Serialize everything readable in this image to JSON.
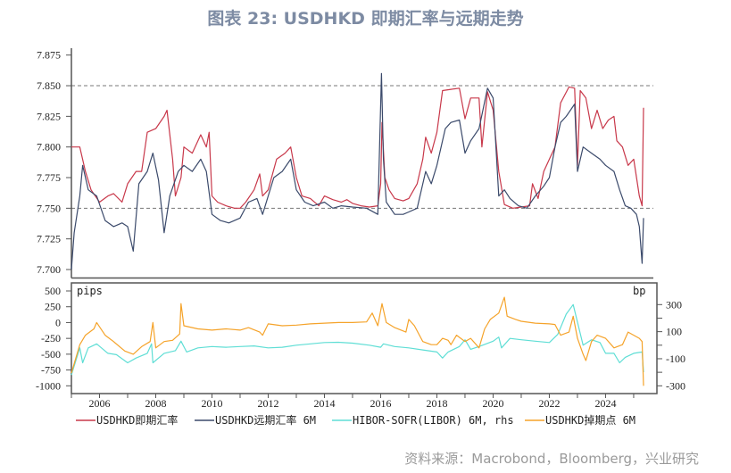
{
  "title": "图表 23: USDHKD 即期汇率与远期走势",
  "source": "资料来源：Macrobond，Bloomberg，兴业研究",
  "chart_data": [
    {
      "type": "line",
      "panel": "top",
      "ylim": [
        7.7,
        7.875
      ],
      "yticks": [
        "7.875",
        "7.850",
        "7.825",
        "7.800",
        "7.775",
        "7.750",
        "7.725",
        "7.700"
      ],
      "reference_lines": [
        7.85,
        7.75
      ],
      "xlim": [
        2005,
        2025.7
      ],
      "series": [
        {
          "name": "USDHKD即期汇率",
          "color": "#c8384a",
          "x": [
            2005.0,
            2005.3,
            2005.5,
            2005.7,
            2006.0,
            2006.3,
            2006.5,
            2006.8,
            2007.0,
            2007.3,
            2007.5,
            2007.7,
            2008.0,
            2008.3,
            2008.4,
            2008.6,
            2008.7,
            2008.9,
            2009.0,
            2009.3,
            2009.6,
            2009.8,
            2009.9,
            2010.0,
            2010.2,
            2010.5,
            2010.8,
            2011.0,
            2011.2,
            2011.5,
            2011.7,
            2011.8,
            2012.0,
            2012.3,
            2012.6,
            2012.8,
            2013.0,
            2013.2,
            2013.5,
            2013.8,
            2014.0,
            2014.3,
            2014.6,
            2014.8,
            2015.0,
            2015.3,
            2015.6,
            2015.9,
            2016.0,
            2016.05,
            2016.15,
            2016.3,
            2016.5,
            2016.8,
            2017.0,
            2017.3,
            2017.5,
            2017.6,
            2017.8,
            2018.0,
            2018.2,
            2018.5,
            2018.8,
            2019.0,
            2019.2,
            2019.5,
            2019.6,
            2019.8,
            2020.0,
            2020.2,
            2020.4,
            2020.7,
            2021.0,
            2021.3,
            2021.4,
            2021.6,
            2021.8,
            2022.0,
            2022.2,
            2022.4,
            2022.7,
            2022.9,
            2023.0,
            2023.1,
            2023.3,
            2023.5,
            2023.7,
            2023.9,
            2024.1,
            2024.3,
            2024.4,
            2024.6,
            2024.8,
            2025.0,
            2025.2,
            2025.3,
            2025.35
          ],
          "values": [
            7.8,
            7.8,
            7.78,
            7.765,
            7.755,
            7.76,
            7.762,
            7.755,
            7.77,
            7.78,
            7.78,
            7.812,
            7.815,
            7.825,
            7.83,
            7.79,
            7.76,
            7.775,
            7.8,
            7.795,
            7.81,
            7.8,
            7.812,
            7.76,
            7.755,
            7.752,
            7.75,
            7.75,
            7.755,
            7.765,
            7.778,
            7.76,
            7.765,
            7.79,
            7.795,
            7.8,
            7.775,
            7.76,
            7.758,
            7.752,
            7.76,
            7.757,
            7.755,
            7.757,
            7.754,
            7.752,
            7.751,
            7.752,
            7.77,
            7.82,
            7.775,
            7.765,
            7.758,
            7.756,
            7.758,
            7.77,
            7.79,
            7.808,
            7.795,
            7.812,
            7.846,
            7.847,
            7.848,
            7.823,
            7.84,
            7.84,
            7.8,
            7.845,
            7.83,
            7.78,
            7.753,
            7.75,
            7.751,
            7.752,
            7.77,
            7.758,
            7.78,
            7.79,
            7.8,
            7.836,
            7.849,
            7.848,
            7.785,
            7.846,
            7.84,
            7.815,
            7.83,
            7.815,
            7.822,
            7.825,
            7.805,
            7.8,
            7.785,
            7.79,
            7.76,
            7.752,
            7.832
          ]
        },
        {
          "name": "USDHKD远期汇率 6M",
          "color": "#3b4a6b",
          "x": [
            2005.0,
            2005.1,
            2005.3,
            2005.4,
            2005.6,
            2005.9,
            2006.2,
            2006.5,
            2006.8,
            2007.0,
            2007.2,
            2007.4,
            2007.7,
            2007.9,
            2008.1,
            2008.3,
            2008.5,
            2008.8,
            2009.0,
            2009.3,
            2009.6,
            2009.8,
            2010.0,
            2010.3,
            2010.6,
            2011.0,
            2011.3,
            2011.6,
            2011.8,
            2012.2,
            2012.5,
            2012.8,
            2013.0,
            2013.3,
            2013.6,
            2014.0,
            2014.3,
            2014.6,
            2015.0,
            2015.5,
            2015.9,
            2016.03,
            2016.1,
            2016.2,
            2016.5,
            2016.8,
            2017.0,
            2017.3,
            2017.6,
            2017.8,
            2018.0,
            2018.3,
            2018.5,
            2018.8,
            2019.0,
            2019.2,
            2019.5,
            2019.8,
            2020.0,
            2020.2,
            2020.4,
            2020.6,
            2020.9,
            2021.2,
            2021.5,
            2021.8,
            2022.0,
            2022.2,
            2022.4,
            2022.6,
            2022.9,
            2023.0,
            2023.2,
            2023.5,
            2023.8,
            2024.0,
            2024.3,
            2024.5,
            2024.7,
            2024.9,
            2025.1,
            2025.2,
            2025.3,
            2025.35
          ],
          "values": [
            7.7,
            7.73,
            7.76,
            7.785,
            7.765,
            7.76,
            7.74,
            7.735,
            7.738,
            7.735,
            7.715,
            7.77,
            7.78,
            7.795,
            7.773,
            7.73,
            7.76,
            7.78,
            7.785,
            7.78,
            7.79,
            7.78,
            7.745,
            7.74,
            7.738,
            7.742,
            7.755,
            7.758,
            7.745,
            7.775,
            7.78,
            7.79,
            7.765,
            7.755,
            7.752,
            7.755,
            7.75,
            7.752,
            7.751,
            7.75,
            7.745,
            7.86,
            7.79,
            7.755,
            7.745,
            7.745,
            7.747,
            7.75,
            7.78,
            7.77,
            7.785,
            7.815,
            7.82,
            7.822,
            7.795,
            7.805,
            7.815,
            7.848,
            7.84,
            7.76,
            7.765,
            7.758,
            7.752,
            7.75,
            7.76,
            7.768,
            7.775,
            7.8,
            7.82,
            7.825,
            7.835,
            7.78,
            7.8,
            7.795,
            7.79,
            7.785,
            7.78,
            7.765,
            7.752,
            7.75,
            7.745,
            7.735,
            7.705,
            7.742
          ]
        }
      ]
    },
    {
      "type": "line",
      "panel": "bottom",
      "left_unit": "pips",
      "right_unit": "bp",
      "ylim_left": [
        -1000,
        500
      ],
      "ylim_right": [
        -300,
        300
      ],
      "yticks_left": [
        "500",
        "250",
        "0",
        "-250",
        "-500",
        "-750",
        "-1000"
      ],
      "yticks_right": [
        "300",
        "100",
        "-100",
        "-300"
      ],
      "xticks": [
        "2006",
        "2008",
        "2010",
        "2012",
        "2014",
        "2016",
        "2018",
        "2020",
        "2022",
        "2024"
      ],
      "xlim": [
        2005,
        2025.7
      ],
      "series": [
        {
          "name": "HIBOR-SOFR(LIBOR) 6M, rhs",
          "axis": "right",
          "color": "#5fded5",
          "x": [
            2005.0,
            2005.3,
            2005.4,
            2005.6,
            2005.9,
            2006.3,
            2006.6,
            2007.0,
            2007.3,
            2007.7,
            2007.85,
            2007.9,
            2008.3,
            2008.7,
            2008.9,
            2009.1,
            2009.5,
            2010.0,
            2010.5,
            2011.0,
            2011.5,
            2012.0,
            2012.5,
            2013.0,
            2014.0,
            2014.5,
            2015.0,
            2015.6,
            2016.0,
            2016.1,
            2016.5,
            2017.0,
            2017.5,
            2018.0,
            2018.2,
            2018.4,
            2018.8,
            2019.0,
            2019.2,
            2019.5,
            2020.0,
            2020.2,
            2020.3,
            2020.6,
            2021.0,
            2021.5,
            2022.0,
            2022.3,
            2022.6,
            2022.85,
            2023.0,
            2023.2,
            2023.5,
            2023.8,
            2024.0,
            2024.3,
            2024.5,
            2024.7,
            2025.0,
            2025.3,
            2025.35
          ],
          "values": [
            -220,
            -20,
            -130,
            -20,
            10,
            -60,
            -70,
            -130,
            -95,
            -60,
            10,
            -130,
            -60,
            -40,
            30,
            -50,
            -20,
            -10,
            -15,
            -10,
            -5,
            -20,
            -15,
            0,
            20,
            22,
            15,
            0,
            -15,
            10,
            -10,
            -20,
            -35,
            -50,
            -95,
            -50,
            -10,
            40,
            -30,
            -10,
            30,
            60,
            -20,
            50,
            40,
            30,
            20,
            80,
            230,
            300,
            170,
            0,
            40,
            20,
            -60,
            -60,
            -130,
            -90,
            -60,
            -50,
            -200
          ]
        },
        {
          "name": "USDHKD掉期点 6M",
          "axis": "left",
          "color": "#f5a32a",
          "x": [
            2005.0,
            2005.3,
            2005.5,
            2005.8,
            2005.9,
            2006.2,
            2006.5,
            2006.9,
            2007.2,
            2007.5,
            2007.8,
            2007.9,
            2008.0,
            2008.3,
            2008.6,
            2008.85,
            2008.9,
            2009.0,
            2009.5,
            2010.0,
            2010.5,
            2011.0,
            2011.3,
            2011.7,
            2011.8,
            2012.0,
            2012.5,
            2013.0,
            2013.5,
            2014.0,
            2014.5,
            2015.0,
            2015.5,
            2015.7,
            2015.9,
            2016.05,
            2016.2,
            2016.5,
            2016.9,
            2017.0,
            2017.2,
            2017.5,
            2017.8,
            2018.0,
            2018.2,
            2018.4,
            2018.5,
            2018.7,
            2019.0,
            2019.2,
            2019.5,
            2019.7,
            2019.9,
            2020.2,
            2020.4,
            2020.5,
            2020.8,
            2021.0,
            2021.5,
            2022.0,
            2022.2,
            2022.4,
            2022.7,
            2022.85,
            2023.0,
            2023.2,
            2023.3,
            2023.5,
            2023.7,
            2024.0,
            2024.3,
            2024.6,
            2024.8,
            2025.0,
            2025.2,
            2025.3,
            2025.35
          ],
          "values": [
            -800,
            -350,
            -200,
            -100,
            0,
            -200,
            -300,
            -450,
            -500,
            -380,
            -300,
            0,
            -400,
            -300,
            -280,
            -180,
            300,
            -50,
            -100,
            -120,
            -100,
            -120,
            -80,
            -150,
            -200,
            -20,
            -50,
            -40,
            -20,
            -10,
            0,
            0,
            10,
            150,
            -50,
            300,
            0,
            -80,
            -150,
            50,
            -50,
            -300,
            -350,
            -350,
            -250,
            -280,
            -350,
            -200,
            -300,
            -250,
            -400,
            -100,
            50,
            150,
            400,
            100,
            50,
            20,
            -10,
            -20,
            -30,
            -200,
            -150,
            100,
            -250,
            -500,
            -600,
            -300,
            -200,
            -250,
            -400,
            -350,
            -150,
            -200,
            -250,
            -300,
            -1000
          ]
        }
      ]
    }
  ],
  "legend": [
    "USDHKD即期汇率",
    "USDHKD远期汇率 6M",
    "HIBOR-SOFR(LIBOR) 6M, rhs",
    "USDHKD掉期点 6M"
  ]
}
